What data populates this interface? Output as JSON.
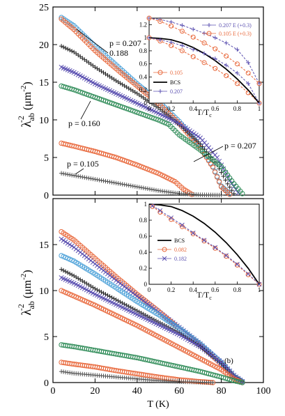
{
  "chart_data": [
    {
      "type": "scatter",
      "panel": "a",
      "ylabel_main": "λ",
      "ylabel_sub": "ab",
      "ylabel_sup": "-2",
      "ylabel_unit": "(μm",
      "ylabel_unit_sup": "-2",
      "ylabel_close": ")",
      "xlim": [
        0,
        100
      ],
      "ylim": [
        0,
        25
      ],
      "yticks": [
        "0",
        "5",
        "10",
        "15",
        "20",
        "25"
      ],
      "annotations": [
        "p = 0.207 -",
        "0.188",
        "p = 0.160",
        "p = 0.207",
        "p = 0.105"
      ],
      "series": [
        {
          "color": "#4aa0d8",
          "marker": "o",
          "x": [
            4,
            10,
            20,
            30,
            40,
            50,
            60,
            70,
            76,
            80,
            84
          ],
          "y": [
            23.6,
            22.5,
            19.8,
            17.3,
            14.8,
            12.5,
            9.8,
            6.5,
            3.8,
            1.2,
            0.2
          ]
        },
        {
          "color": "#e8673a",
          "marker": "o",
          "x": [
            4,
            10,
            20,
            30,
            40,
            50,
            60,
            70,
            76,
            80,
            84
          ],
          "y": [
            23.4,
            22.0,
            19.2,
            16.8,
            14.5,
            12.2,
            9.5,
            6.3,
            3.7,
            1.1,
            0.1
          ]
        },
        {
          "color": "#222222",
          "marker": "+",
          "x": [
            4,
            10,
            20,
            30,
            40,
            50,
            60,
            70,
            78,
            83,
            86
          ],
          "y": [
            19.8,
            19.0,
            17.0,
            15.2,
            13.5,
            11.6,
            9.4,
            6.8,
            4.0,
            1.5,
            0.2
          ]
        },
        {
          "color": "#5a4fb0",
          "marker": "x",
          "x": [
            4,
            10,
            20,
            30,
            40,
            50,
            60,
            70,
            78,
            84,
            88
          ],
          "y": [
            17.0,
            16.3,
            14.8,
            13.5,
            12.2,
            10.9,
            9.5,
            7.6,
            5.0,
            2.0,
            0.3
          ]
        },
        {
          "color": "#2e8b57",
          "marker": "o",
          "x": [
            4,
            10,
            20,
            30,
            40,
            50,
            55,
            60,
            70,
            80,
            86,
            90
          ],
          "y": [
            14.5,
            14.0,
            13.0,
            12.0,
            11.0,
            10.0,
            9.4,
            8.0,
            6.0,
            3.8,
            1.5,
            0.2
          ]
        },
        {
          "color": "#e8673a",
          "marker": "o",
          "x": [
            4,
            10,
            20,
            30,
            40,
            50,
            58,
            62,
            66
          ],
          "y": [
            6.9,
            6.5,
            5.8,
            5.0,
            4.0,
            2.9,
            1.8,
            0.8,
            0.1
          ]
        },
        {
          "color": "#555555",
          "marker": "+",
          "x": [
            4,
            10,
            20,
            30,
            40,
            50,
            60,
            70,
            80
          ],
          "y": [
            2.9,
            2.6,
            2.1,
            1.6,
            1.1,
            0.6,
            0.2,
            0.05,
            0.0
          ]
        }
      ]
    },
    {
      "type": "line",
      "panel": "a-inset",
      "xlabel": "T/T",
      "xlabel_sub": "c",
      "xlim": [
        0,
        1
      ],
      "ylim": [
        0,
        1.3
      ],
      "xticks": [
        "0",
        "0.2",
        "0.4",
        "0.6",
        "0.8",
        "1"
      ],
      "yticks": [
        "0",
        "0.2",
        "0.4",
        "0.6",
        "0.8",
        "1",
        "1.2"
      ],
      "series": [
        {
          "name": "0.207 E (+0.3)",
          "color": "#5a4fb0",
          "marker": "+",
          "x": [
            0,
            0.1,
            0.2,
            0.3,
            0.4,
            0.5,
            0.6,
            0.7,
            0.8,
            0.9,
            1.0
          ],
          "y": [
            1.3,
            1.28,
            1.24,
            1.19,
            1.13,
            1.07,
            1.0,
            0.92,
            0.82,
            0.62,
            0.3
          ]
        },
        {
          "name": "0.105 E (+0.3)",
          "color": "#e8673a",
          "marker": "o",
          "x": [
            0,
            0.1,
            0.2,
            0.3,
            0.4,
            0.5,
            0.6,
            0.7,
            0.8,
            0.9,
            1.0
          ],
          "y": [
            1.3,
            1.25,
            1.18,
            1.1,
            1.01,
            0.92,
            0.83,
            0.72,
            0.6,
            0.46,
            0.3
          ]
        },
        {
          "name": "0.105",
          "color": "#e8673a",
          "marker": "o",
          "x": [
            0,
            0.1,
            0.2,
            0.3,
            0.4,
            0.5,
            0.6,
            0.7,
            0.8,
            0.9,
            1.0
          ],
          "y": [
            1.0,
            0.95,
            0.88,
            0.8,
            0.71,
            0.62,
            0.53,
            0.42,
            0.3,
            0.16,
            0.0
          ]
        },
        {
          "name": "BCS",
          "color": "#000000",
          "marker": "line",
          "x": [
            0,
            0.1,
            0.2,
            0.3,
            0.4,
            0.5,
            0.6,
            0.7,
            0.8,
            0.9,
            1.0
          ],
          "y": [
            1.0,
            0.99,
            0.97,
            0.92,
            0.85,
            0.76,
            0.65,
            0.52,
            0.37,
            0.2,
            0.0
          ]
        },
        {
          "name": "0.207",
          "color": "#5a4fb0",
          "marker": "+",
          "x": [
            0,
            0.1,
            0.2,
            0.3,
            0.4,
            0.5,
            0.6,
            0.7,
            0.8,
            0.9,
            1.0
          ],
          "y": [
            1.0,
            0.97,
            0.93,
            0.88,
            0.82,
            0.76,
            0.68,
            0.58,
            0.46,
            0.3,
            0.0
          ]
        }
      ]
    },
    {
      "type": "scatter",
      "panel": "b",
      "label": "(b)",
      "xlabel": "T (K)",
      "ylabel_main": "λ",
      "ylabel_sub": "ab",
      "ylabel_sup": "-2",
      "ylabel_unit": "(μm",
      "ylabel_unit_sup": "-2",
      "ylabel_close": ")",
      "xlim": [
        0,
        100
      ],
      "ylim": [
        0,
        20
      ],
      "xticks": [
        "0",
        "20",
        "40",
        "60",
        "80",
        "100"
      ],
      "yticks": [
        "0",
        "5",
        "10",
        "15"
      ],
      "series": [
        {
          "color": "#e8673a",
          "marker": "o",
          "x": [
            4,
            10,
            20,
            30,
            40,
            50,
            60,
            70,
            80,
            86,
            90
          ],
          "y": [
            16.4,
            15.5,
            13.5,
            11.5,
            9.6,
            7.8,
            5.9,
            4.1,
            2.0,
            0.6,
            0.1
          ]
        },
        {
          "color": "#5a4fb0",
          "marker": "x",
          "x": [
            4,
            10,
            20,
            30,
            40,
            50,
            60,
            70,
            80,
            86,
            90
          ],
          "y": [
            15.6,
            14.7,
            12.9,
            11.1,
            9.4,
            7.7,
            6.0,
            4.2,
            2.1,
            0.6,
            0.1
          ]
        },
        {
          "color": "#4aa0d8",
          "marker": "o",
          "x": [
            4,
            10,
            20,
            30,
            40,
            50,
            60,
            70,
            80,
            86,
            90
          ],
          "y": [
            13.8,
            13.2,
            11.8,
            10.3,
            8.8,
            7.4,
            5.9,
            4.2,
            2.2,
            0.7,
            0.1
          ]
        },
        {
          "color": "#222222",
          "marker": "+",
          "x": [
            4,
            10,
            20,
            30,
            40,
            50,
            60,
            70,
            80,
            86,
            90
          ],
          "y": [
            12.3,
            11.6,
            10.2,
            9.0,
            7.8,
            6.6,
            5.4,
            3.9,
            2.1,
            0.7,
            0.1
          ]
        },
        {
          "color": "#5a4fb0",
          "marker": "x",
          "x": [
            4,
            10,
            20,
            30,
            40,
            50,
            60,
            70,
            80,
            86,
            90
          ],
          "y": [
            11.4,
            10.8,
            9.6,
            8.5,
            7.4,
            6.3,
            5.2,
            3.9,
            2.2,
            0.8,
            0.1
          ]
        },
        {
          "color": "#e8673a",
          "marker": "o",
          "x": [
            4,
            10,
            20,
            30,
            40,
            50,
            60,
            70,
            80,
            86,
            90
          ],
          "y": [
            10.0,
            9.4,
            8.4,
            7.3,
            6.2,
            5.0,
            3.8,
            2.6,
            1.4,
            0.4,
            0.0
          ]
        },
        {
          "color": "#2e8b57",
          "marker": "o",
          "x": [
            4,
            10,
            20,
            30,
            40,
            50,
            60,
            70,
            80,
            86,
            90
          ],
          "y": [
            4.1,
            3.9,
            3.5,
            3.1,
            2.7,
            2.2,
            1.7,
            1.2,
            0.6,
            0.2,
            0.0
          ]
        },
        {
          "color": "#e8673a",
          "marker": "o",
          "x": [
            4,
            10,
            20,
            30,
            40,
            50,
            60,
            70,
            76
          ],
          "y": [
            2.2,
            2.0,
            1.7,
            1.3,
            0.95,
            0.6,
            0.3,
            0.1,
            0.0
          ]
        },
        {
          "color": "#555555",
          "marker": "+",
          "x": [
            4,
            10,
            20,
            30,
            40,
            50,
            60,
            70,
            76
          ],
          "y": [
            1.2,
            1.0,
            0.8,
            0.6,
            0.4,
            0.2,
            0.1,
            0.03,
            0.0
          ]
        }
      ]
    },
    {
      "type": "line",
      "panel": "b-inset",
      "xlabel": "T/T",
      "xlabel_sub": "c",
      "xlim": [
        0,
        1
      ],
      "ylim": [
        0,
        1
      ],
      "xticks": [
        "0",
        "0.2",
        "0.4",
        "0.6",
        "0.8",
        "1"
      ],
      "yticks": [
        "0",
        "0.2",
        "0.4",
        "0.6",
        "0.8",
        "1"
      ],
      "series": [
        {
          "name": "BCS",
          "color": "#000000",
          "marker": "line",
          "x": [
            0,
            0.1,
            0.2,
            0.3,
            0.4,
            0.5,
            0.6,
            0.7,
            0.8,
            0.9,
            1.0
          ],
          "y": [
            1.0,
            0.99,
            0.97,
            0.92,
            0.85,
            0.76,
            0.65,
            0.52,
            0.37,
            0.2,
            0.0
          ]
        },
        {
          "name": "0.082",
          "color": "#e8673a",
          "marker": "o",
          "x": [
            0.03,
            0.1,
            0.2,
            0.3,
            0.4,
            0.5,
            0.6,
            0.7,
            0.8,
            0.9,
            1.0
          ],
          "y": [
            0.97,
            0.9,
            0.81,
            0.72,
            0.63,
            0.54,
            0.45,
            0.35,
            0.24,
            0.12,
            0.0
          ]
        },
        {
          "name": "0.182",
          "color": "#5a4fb0",
          "marker": "x",
          "x": [
            0.03,
            0.1,
            0.2,
            0.3,
            0.4,
            0.5,
            0.6,
            0.7,
            0.8,
            0.9,
            1.0
          ],
          "y": [
            0.98,
            0.92,
            0.83,
            0.74,
            0.64,
            0.55,
            0.46,
            0.36,
            0.25,
            0.13,
            0.0
          ]
        }
      ]
    }
  ]
}
